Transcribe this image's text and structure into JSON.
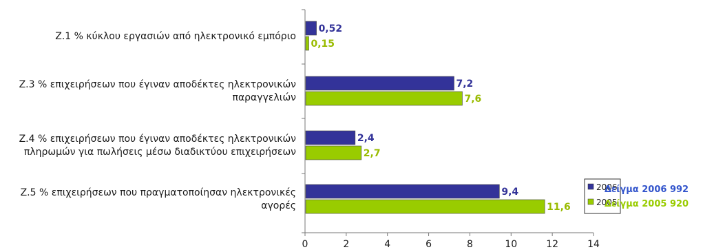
{
  "chart_data": {
    "type": "bar",
    "orientation": "horizontal",
    "categories": [
      "Ζ.1 % κύκλου εργασιών από ηλεκτρονικό εμπόριο",
      "Ζ.3 % επιχειρήσεων που έγιναν αποδέκτες ηλεκτρονικών\nπαραγγελιών",
      "Ζ.4 % επιχειρήσεων που έγιναν αποδέκτες ηλεκτρονικών\nπληρωμών για πωλήσεις μέσω διαδικτύου επιχειρήσεων",
      "Ζ.5 % επιχειρήσεων που πραγματοποίησαν ηλεκτρονικές\nαγορές"
    ],
    "series": [
      {
        "name": "2006",
        "color": "#333399",
        "values": [
          0.52,
          7.2,
          2.4,
          9.4
        ],
        "value_labels": [
          "0,52",
          "7,2",
          "2,4",
          "9,4"
        ]
      },
      {
        "name": "2005",
        "color": "#99cc00",
        "values": [
          0.15,
          7.6,
          2.7,
          11.6
        ],
        "value_labels": [
          "0,15",
          "7,6",
          "2,7",
          "11,6"
        ]
      }
    ],
    "xlim": [
      0,
      14
    ],
    "xticks": [
      0,
      2,
      4,
      6,
      8,
      10,
      12,
      14
    ],
    "grid": false,
    "legend_position": "right"
  },
  "sample_notes": [
    {
      "text": "Δείγμα 2006   992",
      "color": "#3355cc"
    },
    {
      "text": "Δείγμα 2005   920",
      "color": "#99cc00"
    }
  ]
}
